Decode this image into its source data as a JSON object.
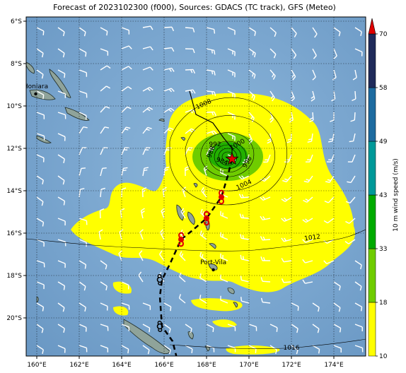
{
  "title": "Forecast of 2023102300 (f000), Sources: GDACS (TC track), GFS (Meteo)",
  "lon_ticks": [
    "160°E",
    "162°E",
    "164°E",
    "166°E",
    "168°E",
    "170°E",
    "172°E",
    "174°E"
  ],
  "lat_ticks": [
    "6°S",
    "8°S",
    "10°S",
    "12°S",
    "14°S",
    "16°S",
    "18°S",
    "20°S"
  ],
  "cities": [
    {
      "name": "Honiara",
      "lon": 159.95,
      "lat": -9.43
    },
    {
      "name": "Port-Vila",
      "lon": 168.32,
      "lat": -17.73
    }
  ],
  "isobar_labels": [
    {
      "text": "1008",
      "lon": 167.9,
      "lat": -10.0,
      "rot": -25
    },
    {
      "text": "1000",
      "lon": 169.5,
      "lat": -11.9,
      "rot": -30
    },
    {
      "text": "996",
      "lon": 170.0,
      "lat": -12.7,
      "rot": -60
    },
    {
      "text": "992",
      "lon": 168.4,
      "lat": -11.9,
      "rot": 0
    },
    {
      "text": "988",
      "lon": 168.3,
      "lat": -12.2,
      "rot": -70
    },
    {
      "text": "984",
      "lon": 168.7,
      "lat": -12.7,
      "rot": 20
    },
    {
      "text": "1004",
      "lon": 169.8,
      "lat": -13.8,
      "rot": -25
    },
    {
      "text": "1012",
      "lon": 173.0,
      "lat": -16.3,
      "rot": -8
    },
    {
      "text": "1016",
      "lon": 172.0,
      "lat": -21.5,
      "rot": 0
    }
  ],
  "colorbar": {
    "label": "10 m wind speed (m/s)",
    "ticks": [
      "10",
      "18",
      "33",
      "43",
      "49",
      "58",
      "70"
    ],
    "colors": [
      "#ffff00",
      "#6fcc00",
      "#00aa00",
      "#009999",
      "#1d6ba0",
      "#1f2a5a"
    ]
  },
  "track": {
    "past": [
      [
        167.2,
        -9.3
      ],
      [
        167.5,
        -10.4
      ],
      [
        168.3,
        -10.8
      ],
      [
        168.8,
        -11.5
      ],
      [
        169.2,
        -12.0
      ],
      [
        169.2,
        -12.5
      ]
    ],
    "forecast": [
      [
        169.2,
        -12.5
      ],
      [
        169.0,
        -13.3
      ],
      [
        168.7,
        -14.3
      ],
      [
        168.0,
        -15.3
      ],
      [
        167.3,
        -15.9
      ],
      [
        166.8,
        -16.3
      ],
      [
        166.3,
        -17.4
      ],
      [
        165.9,
        -18.2
      ],
      [
        165.8,
        -19.0
      ],
      [
        165.9,
        -20.4
      ],
      [
        166.4,
        -21.1
      ],
      [
        166.6,
        -21.9
      ]
    ],
    "storm_positions": [
      [
        169.2,
        -12.5
      ],
      [
        168.7,
        -14.3
      ],
      [
        168.0,
        -15.3
      ],
      [
        166.8,
        -16.3
      ]
    ],
    "low_positions": [
      [
        165.8,
        -18.2
      ],
      [
        165.8,
        -20.4
      ]
    ]
  }
}
